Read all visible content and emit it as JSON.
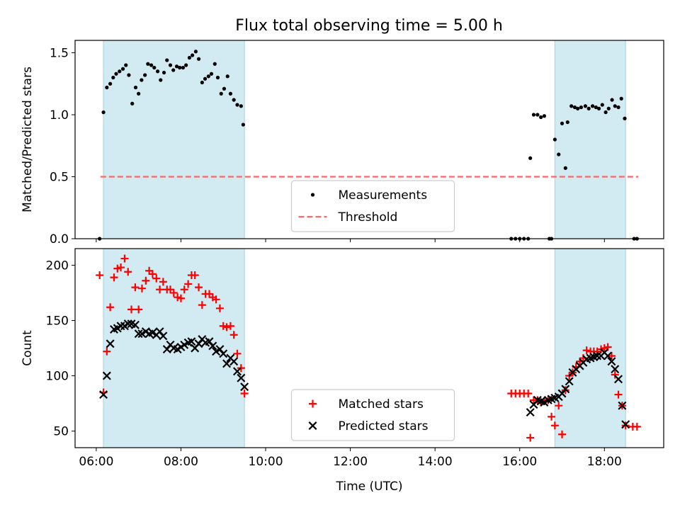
{
  "title": "Flux total observing time = 5.00 h",
  "colors": {
    "shade": "#add8e6",
    "measurement": "#000000",
    "threshold": "#ff6666",
    "matched": "#ff0000",
    "predicted": "#000000"
  },
  "chart_data": [
    {
      "type": "scatter",
      "ylabel": "Matched/Predicted stars",
      "xlim": [
        5.5,
        19.4
      ],
      "ylim": [
        0,
        1.6
      ],
      "yticks": [
        0.0,
        0.5,
        1.0,
        1.5
      ],
      "ytick_labels": [
        "0.0",
        "0.5",
        "1.0",
        "1.5"
      ],
      "legend_position": "bottom-center",
      "shaded_intervals": [
        [
          6.17,
          9.5
        ],
        [
          16.83,
          18.5
        ]
      ],
      "threshold": {
        "name": "Threshold",
        "value": 0.5,
        "x_range": [
          6.1,
          18.8
        ]
      },
      "series": [
        {
          "name": "Measurements",
          "marker": "dot",
          "points": [
            [
              6.08,
              0.0
            ],
            [
              6.17,
              1.02
            ],
            [
              6.25,
              1.22
            ],
            [
              6.33,
              1.25
            ],
            [
              6.4,
              1.3
            ],
            [
              6.47,
              1.33
            ],
            [
              6.55,
              1.35
            ],
            [
              6.63,
              1.37
            ],
            [
              6.7,
              1.4
            ],
            [
              6.77,
              1.32
            ],
            [
              6.85,
              1.09
            ],
            [
              6.93,
              1.22
            ],
            [
              7.0,
              1.17
            ],
            [
              7.07,
              1.28
            ],
            [
              7.15,
              1.32
            ],
            [
              7.22,
              1.41
            ],
            [
              7.3,
              1.4
            ],
            [
              7.37,
              1.38
            ],
            [
              7.45,
              1.35
            ],
            [
              7.52,
              1.28
            ],
            [
              7.6,
              1.34
            ],
            [
              7.67,
              1.44
            ],
            [
              7.75,
              1.4
            ],
            [
              7.82,
              1.36
            ],
            [
              7.9,
              1.39
            ],
            [
              7.97,
              1.38
            ],
            [
              8.05,
              1.38
            ],
            [
              8.12,
              1.4
            ],
            [
              8.2,
              1.46
            ],
            [
              8.27,
              1.48
            ],
            [
              8.35,
              1.51
            ],
            [
              8.42,
              1.45
            ],
            [
              8.5,
              1.26
            ],
            [
              8.57,
              1.29
            ],
            [
              8.65,
              1.31
            ],
            [
              8.72,
              1.33
            ],
            [
              8.8,
              1.41
            ],
            [
              8.87,
              1.3
            ],
            [
              8.95,
              1.17
            ],
            [
              9.02,
              1.21
            ],
            [
              9.1,
              1.31
            ],
            [
              9.17,
              1.17
            ],
            [
              9.25,
              1.12
            ],
            [
              9.33,
              1.08
            ],
            [
              9.42,
              1.07
            ],
            [
              9.47,
              0.92
            ],
            [
              15.8,
              0.0
            ],
            [
              15.9,
              0.0
            ],
            [
              16.0,
              0.0
            ],
            [
              16.1,
              0.0
            ],
            [
              16.2,
              0.0
            ],
            [
              16.25,
              0.65
            ],
            [
              16.33,
              1.0
            ],
            [
              16.42,
              1.0
            ],
            [
              16.5,
              0.98
            ],
            [
              16.58,
              0.99
            ],
            [
              16.7,
              0.0
            ],
            [
              16.75,
              0.0
            ],
            [
              16.83,
              0.8
            ],
            [
              16.92,
              0.68
            ],
            [
              17.0,
              0.93
            ],
            [
              17.08,
              0.57
            ],
            [
              17.13,
              0.94
            ],
            [
              17.22,
              1.07
            ],
            [
              17.3,
              1.06
            ],
            [
              17.37,
              1.05
            ],
            [
              17.45,
              1.06
            ],
            [
              17.55,
              1.07
            ],
            [
              17.63,
              1.05
            ],
            [
              17.72,
              1.07
            ],
            [
              17.8,
              1.06
            ],
            [
              17.87,
              1.05
            ],
            [
              17.95,
              1.08
            ],
            [
              18.03,
              1.02
            ],
            [
              18.1,
              1.05
            ],
            [
              18.18,
              1.12
            ],
            [
              18.25,
              1.07
            ],
            [
              18.33,
              1.06
            ],
            [
              18.4,
              1.13
            ],
            [
              18.48,
              0.97
            ],
            [
              18.7,
              0.0
            ],
            [
              18.77,
              0.0
            ]
          ]
        }
      ]
    },
    {
      "type": "scatter",
      "xlabel": "Time (UTC)",
      "ylabel": "Count",
      "xlim": [
        5.5,
        19.4
      ],
      "ylim": [
        35,
        215
      ],
      "yticks": [
        50,
        100,
        150,
        200
      ],
      "ytick_labels": [
        "50",
        "100",
        "150",
        "200"
      ],
      "xticks": [
        6,
        8,
        10,
        12,
        14,
        16,
        18
      ],
      "xtick_labels": [
        "06:00",
        "08:00",
        "10:00",
        "12:00",
        "14:00",
        "16:00",
        "18:00"
      ],
      "legend_position": "bottom-center",
      "shaded_intervals": [
        [
          6.17,
          9.5
        ],
        [
          16.83,
          18.5
        ]
      ],
      "series": [
        {
          "name": "Matched stars",
          "marker": "plus",
          "points": [
            [
              6.08,
              191
            ],
            [
              6.17,
              85
            ],
            [
              6.25,
              122
            ],
            [
              6.33,
              162
            ],
            [
              6.42,
              189
            ],
            [
              6.5,
              197
            ],
            [
              6.58,
              198
            ],
            [
              6.67,
              206
            ],
            [
              6.75,
              194
            ],
            [
              6.83,
              160
            ],
            [
              6.92,
              180
            ],
            [
              7.0,
              160
            ],
            [
              7.08,
              179
            ],
            [
              7.17,
              186
            ],
            [
              7.25,
              195
            ],
            [
              7.33,
              192
            ],
            [
              7.42,
              188
            ],
            [
              7.5,
              178
            ],
            [
              7.58,
              185
            ],
            [
              7.67,
              178
            ],
            [
              7.75,
              178
            ],
            [
              7.83,
              175
            ],
            [
              7.92,
              171
            ],
            [
              8.0,
              170
            ],
            [
              8.08,
              178
            ],
            [
              8.17,
              183
            ],
            [
              8.25,
              191
            ],
            [
              8.33,
              191
            ],
            [
              8.42,
              180
            ],
            [
              8.5,
              164
            ],
            [
              8.58,
              174
            ],
            [
              8.67,
              174
            ],
            [
              8.75,
              171
            ],
            [
              8.83,
              169
            ],
            [
              8.92,
              161
            ],
            [
              9.0,
              145
            ],
            [
              9.08,
              144
            ],
            [
              9.17,
              145
            ],
            [
              9.25,
              137
            ],
            [
              9.33,
              120
            ],
            [
              9.42,
              107
            ],
            [
              9.5,
              84
            ],
            [
              15.8,
              84
            ],
            [
              15.9,
              84
            ],
            [
              16.0,
              84
            ],
            [
              16.1,
              84
            ],
            [
              16.2,
              84
            ],
            [
              16.25,
              44
            ],
            [
              16.33,
              78
            ],
            [
              16.42,
              78
            ],
            [
              16.5,
              76
            ],
            [
              16.58,
              77
            ],
            [
              16.67,
              78
            ],
            [
              16.75,
              63
            ],
            [
              16.83,
              55
            ],
            [
              16.92,
              73
            ],
            [
              17.0,
              47
            ],
            [
              17.08,
              87
            ],
            [
              17.17,
              100
            ],
            [
              17.25,
              103
            ],
            [
              17.33,
              108
            ],
            [
              17.42,
              113
            ],
            [
              17.5,
              116
            ],
            [
              17.58,
              123
            ],
            [
              17.67,
              122
            ],
            [
              17.75,
              122
            ],
            [
              17.83,
              122
            ],
            [
              17.92,
              124
            ],
            [
              18.0,
              125
            ],
            [
              18.08,
              126
            ],
            [
              18.17,
              118
            ],
            [
              18.25,
              101
            ],
            [
              18.33,
              83
            ],
            [
              18.42,
              73
            ],
            [
              18.5,
              55
            ],
            [
              18.67,
              54
            ],
            [
              18.77,
              54
            ]
          ]
        },
        {
          "name": "Predicted stars",
          "marker": "x",
          "points": [
            [
              6.17,
              83
            ],
            [
              6.25,
              100
            ],
            [
              6.33,
              129
            ],
            [
              6.42,
              142
            ],
            [
              6.5,
              143
            ],
            [
              6.58,
              145
            ],
            [
              6.67,
              145
            ],
            [
              6.75,
              147
            ],
            [
              6.83,
              147
            ],
            [
              6.92,
              146
            ],
            [
              7.0,
              138
            ],
            [
              7.08,
              138
            ],
            [
              7.17,
              140
            ],
            [
              7.25,
              138
            ],
            [
              7.33,
              139
            ],
            [
              7.42,
              137
            ],
            [
              7.5,
              140
            ],
            [
              7.58,
              136
            ],
            [
              7.67,
              124
            ],
            [
              7.75,
              128
            ],
            [
              7.83,
              125
            ],
            [
              7.92,
              124
            ],
            [
              8.0,
              126
            ],
            [
              8.08,
              128
            ],
            [
              8.17,
              130
            ],
            [
              8.25,
              131
            ],
            [
              8.33,
              125
            ],
            [
              8.42,
              129
            ],
            [
              8.5,
              133
            ],
            [
              8.58,
              130
            ],
            [
              8.67,
              131
            ],
            [
              8.75,
              127
            ],
            [
              8.83,
              122
            ],
            [
              8.92,
              124
            ],
            [
              9.0,
              120
            ],
            [
              9.08,
              111
            ],
            [
              9.17,
              116
            ],
            [
              9.25,
              113
            ],
            [
              9.33,
              104
            ],
            [
              9.42,
              98
            ],
            [
              9.5,
              90
            ],
            [
              16.25,
              67
            ],
            [
              16.33,
              74
            ],
            [
              16.42,
              78
            ],
            [
              16.5,
              77
            ],
            [
              16.58,
              76
            ],
            [
              16.67,
              78
            ],
            [
              16.75,
              79
            ],
            [
              16.83,
              80
            ],
            [
              16.92,
              81
            ],
            [
              17.0,
              84
            ],
            [
              17.08,
              88
            ],
            [
              17.17,
              95
            ],
            [
              17.25,
              103
            ],
            [
              17.33,
              106
            ],
            [
              17.42,
              109
            ],
            [
              17.5,
              112
            ],
            [
              17.58,
              115
            ],
            [
              17.67,
              116
            ],
            [
              17.75,
              117
            ],
            [
              17.83,
              118
            ],
            [
              17.92,
              118
            ],
            [
              18.0,
              121
            ],
            [
              18.08,
              118
            ],
            [
              18.17,
              113
            ],
            [
              18.25,
              106
            ],
            [
              18.33,
              97
            ],
            [
              18.42,
              73
            ],
            [
              18.5,
              56
            ]
          ]
        }
      ]
    }
  ]
}
